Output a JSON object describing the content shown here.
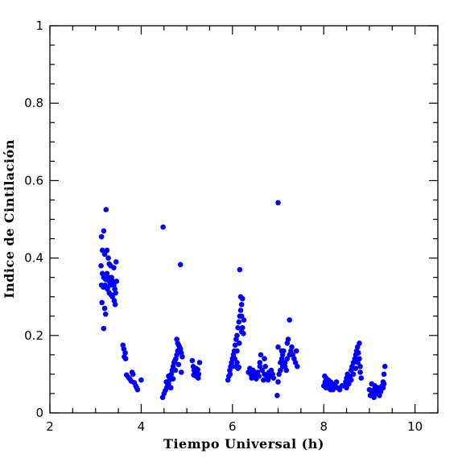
{
  "chart_data": {
    "type": "scatter",
    "title": "",
    "xlabel": "Tiempo Universal (h)",
    "ylabel": "Indice de Cintilación",
    "xlim": [
      2,
      10.5
    ],
    "ylim": [
      0,
      1
    ],
    "x_ticks": [
      2,
      4,
      6,
      8,
      10
    ],
    "x_tick_labels": [
      "2",
      "4",
      "6",
      "8",
      "10"
    ],
    "y_ticks": [
      0,
      0.2,
      0.4,
      0.6,
      0.8,
      1
    ],
    "y_tick_labels": [
      "0",
      "0.2",
      "0.4",
      "0.6",
      "0.8",
      "1"
    ],
    "grid": false,
    "marker_color": "#0000ff",
    "series": [
      {
        "points": [
          [
            3.23,
            0.525
          ],
          [
            3.13,
            0.455
          ],
          [
            3.18,
            0.47
          ],
          [
            3.15,
            0.42
          ],
          [
            3.2,
            0.41
          ],
          [
            3.25,
            0.42
          ],
          [
            3.28,
            0.4
          ],
          [
            3.3,
            0.385
          ],
          [
            3.33,
            0.38
          ],
          [
            3.45,
            0.39
          ],
          [
            3.4,
            0.375
          ],
          [
            3.12,
            0.38
          ],
          [
            3.15,
            0.36
          ],
          [
            3.18,
            0.35
          ],
          [
            3.22,
            0.345
          ],
          [
            3.25,
            0.36
          ],
          [
            3.28,
            0.35
          ],
          [
            3.3,
            0.34
          ],
          [
            3.32,
            0.33
          ],
          [
            3.35,
            0.35
          ],
          [
            3.38,
            0.34
          ],
          [
            3.4,
            0.33
          ],
          [
            3.42,
            0.32
          ],
          [
            3.44,
            0.31
          ],
          [
            3.46,
            0.34
          ],
          [
            3.13,
            0.33
          ],
          [
            3.17,
            0.325
          ],
          [
            3.21,
            0.33
          ],
          [
            3.26,
            0.32
          ],
          [
            3.3,
            0.31
          ],
          [
            3.34,
            0.305
          ],
          [
            3.37,
            0.3
          ],
          [
            3.41,
            0.29
          ],
          [
            3.43,
            0.28
          ],
          [
            3.14,
            0.285
          ],
          [
            3.2,
            0.27
          ],
          [
            3.22,
            0.255
          ],
          [
            3.18,
            0.218
          ],
          [
            3.6,
            0.175
          ],
          [
            3.62,
            0.165
          ],
          [
            3.65,
            0.155
          ],
          [
            3.63,
            0.145
          ],
          [
            3.66,
            0.14
          ],
          [
            3.68,
            0.098
          ],
          [
            3.72,
            0.092
          ],
          [
            3.75,
            0.088
          ],
          [
            3.78,
            0.082
          ],
          [
            3.8,
            0.105
          ],
          [
            3.82,
            0.1
          ],
          [
            3.85,
            0.078
          ],
          [
            3.88,
            0.07
          ],
          [
            3.9,
            0.065
          ],
          [
            3.92,
            0.06
          ],
          [
            4.0,
            0.085
          ],
          [
            4.48,
            0.48
          ],
          [
            4.47,
            0.04
          ],
          [
            4.5,
            0.05
          ],
          [
            4.53,
            0.058
          ],
          [
            4.56,
            0.065
          ],
          [
            4.58,
            0.07
          ],
          [
            4.6,
            0.075
          ],
          [
            4.62,
            0.085
          ],
          [
            4.64,
            0.09
          ],
          [
            4.66,
            0.1
          ],
          [
            4.68,
            0.11
          ],
          [
            4.7,
            0.12
          ],
          [
            4.72,
            0.13
          ],
          [
            4.74,
            0.135
          ],
          [
            4.76,
            0.14
          ],
          [
            4.78,
            0.15
          ],
          [
            4.8,
            0.16
          ],
          [
            4.82,
            0.175
          ],
          [
            4.84,
            0.17
          ],
          [
            4.86,
            0.165
          ],
          [
            4.88,
            0.155
          ],
          [
            4.9,
            0.145
          ],
          [
            4.78,
            0.19
          ],
          [
            4.8,
            0.18
          ],
          [
            4.86,
            0.383
          ],
          [
            4.55,
            0.08
          ],
          [
            4.6,
            0.095
          ],
          [
            4.65,
            0.065
          ],
          [
            4.7,
            0.088
          ],
          [
            4.75,
            0.11
          ],
          [
            4.82,
            0.125
          ],
          [
            4.88,
            0.105
          ],
          [
            5.12,
            0.135
          ],
          [
            5.14,
            0.12
          ],
          [
            5.16,
            0.11
          ],
          [
            5.18,
            0.1
          ],
          [
            5.2,
            0.095
          ],
          [
            5.22,
            0.105
          ],
          [
            5.24,
            0.112
          ],
          [
            5.26,
            0.1
          ],
          [
            5.28,
            0.13
          ],
          [
            5.15,
            0.098
          ],
          [
            5.2,
            0.115
          ],
          [
            5.25,
            0.09
          ],
          [
            5.9,
            0.085
          ],
          [
            5.92,
            0.095
          ],
          [
            5.94,
            0.11
          ],
          [
            5.96,
            0.12
          ],
          [
            5.98,
            0.13
          ],
          [
            6.0,
            0.14
          ],
          [
            6.02,
            0.15
          ],
          [
            6.04,
            0.16
          ],
          [
            6.06,
            0.175
          ],
          [
            6.08,
            0.19
          ],
          [
            6.1,
            0.2
          ],
          [
            6.12,
            0.22
          ],
          [
            6.14,
            0.235
          ],
          [
            6.16,
            0.25
          ],
          [
            6.18,
            0.265
          ],
          [
            6.2,
            0.28
          ],
          [
            6.22,
            0.295
          ],
          [
            6.16,
            0.37
          ],
          [
            6.18,
            0.3
          ],
          [
            6.2,
            0.25
          ],
          [
            6.22,
            0.22
          ],
          [
            6.24,
            0.205
          ],
          [
            6.08,
            0.12
          ],
          [
            6.1,
            0.13
          ],
          [
            6.12,
            0.115
          ],
          [
            6.14,
            0.118
          ],
          [
            5.95,
            0.1
          ],
          [
            6.0,
            0.12
          ],
          [
            6.05,
            0.14
          ],
          [
            6.1,
            0.16
          ],
          [
            6.15,
            0.18
          ],
          [
            6.2,
            0.21
          ],
          [
            6.25,
            0.24
          ],
          [
            6.35,
            0.105
          ],
          [
            6.4,
            0.1
          ],
          [
            6.45,
            0.11
          ],
          [
            6.5,
            0.095
          ],
          [
            6.55,
            0.105
          ],
          [
            6.6,
            0.12
          ],
          [
            6.62,
            0.15
          ],
          [
            6.65,
            0.11
          ],
          [
            6.7,
            0.1
          ],
          [
            6.75,
            0.095
          ],
          [
            6.8,
            0.105
          ],
          [
            6.85,
            0.11
          ],
          [
            6.9,
            0.09
          ],
          [
            6.38,
            0.115
          ],
          [
            6.42,
            0.09
          ],
          [
            6.48,
            0.1
          ],
          [
            6.52,
            0.088
          ],
          [
            6.58,
            0.095
          ],
          [
            6.68,
            0.085
          ],
          [
            6.72,
            0.12
          ],
          [
            6.78,
            0.085
          ],
          [
            6.82,
            0.095
          ],
          [
            6.88,
            0.1
          ],
          [
            6.6,
            0.13
          ],
          [
            6.7,
            0.14
          ],
          [
            7.0,
            0.543
          ],
          [
            6.98,
            0.045
          ],
          [
            7.0,
            0.08
          ],
          [
            7.02,
            0.1
          ],
          [
            7.05,
            0.13
          ],
          [
            7.08,
            0.14
          ],
          [
            7.1,
            0.15
          ],
          [
            7.12,
            0.16
          ],
          [
            7.15,
            0.12
          ],
          [
            7.18,
            0.11
          ],
          [
            7.2,
            0.18
          ],
          [
            7.22,
            0.19
          ],
          [
            7.25,
            0.24
          ],
          [
            7.05,
            0.11
          ],
          [
            7.1,
            0.12
          ],
          [
            7.15,
            0.13
          ],
          [
            7.2,
            0.14
          ],
          [
            7.25,
            0.15
          ],
          [
            7.28,
            0.16
          ],
          [
            7.3,
            0.17
          ],
          [
            7.32,
            0.15
          ],
          [
            7.35,
            0.14
          ],
          [
            7.38,
            0.13
          ],
          [
            7.4,
            0.16
          ],
          [
            7.42,
            0.12
          ],
          [
            7.0,
            0.17
          ],
          [
            7.08,
            0.16
          ],
          [
            8.0,
            0.07
          ],
          [
            8.03,
            0.08
          ],
          [
            8.05,
            0.09
          ],
          [
            8.08,
            0.075
          ],
          [
            8.1,
            0.065
          ],
          [
            8.12,
            0.07
          ],
          [
            8.15,
            0.08
          ],
          [
            8.18,
            0.075
          ],
          [
            8.2,
            0.06
          ],
          [
            8.22,
            0.065
          ],
          [
            8.25,
            0.07
          ],
          [
            8.28,
            0.08
          ],
          [
            8.3,
            0.065
          ],
          [
            8.35,
            0.06
          ],
          [
            8.4,
            0.07
          ],
          [
            8.02,
            0.095
          ],
          [
            8.05,
            0.065
          ],
          [
            8.1,
            0.085
          ],
          [
            8.15,
            0.06
          ],
          [
            8.2,
            0.075
          ],
          [
            8.45,
            0.07
          ],
          [
            8.48,
            0.08
          ],
          [
            8.5,
            0.09
          ],
          [
            8.52,
            0.1
          ],
          [
            8.55,
            0.085
          ],
          [
            8.58,
            0.095
          ],
          [
            8.6,
            0.11
          ],
          [
            8.62,
            0.12
          ],
          [
            8.65,
            0.13
          ],
          [
            8.68,
            0.14
          ],
          [
            8.7,
            0.15
          ],
          [
            8.72,
            0.16
          ],
          [
            8.74,
            0.17
          ],
          [
            8.76,
            0.155
          ],
          [
            8.78,
            0.14
          ],
          [
            8.8,
            0.12
          ],
          [
            8.5,
            0.065
          ],
          [
            8.55,
            0.075
          ],
          [
            8.6,
            0.085
          ],
          [
            8.65,
            0.1
          ],
          [
            8.7,
            0.115
          ],
          [
            8.75,
            0.13
          ],
          [
            8.8,
            0.105
          ],
          [
            8.82,
            0.09
          ],
          [
            8.78,
            0.18
          ],
          [
            9.0,
            0.06
          ],
          [
            9.02,
            0.045
          ],
          [
            9.05,
            0.05
          ],
          [
            9.08,
            0.055
          ],
          [
            9.1,
            0.06
          ],
          [
            9.12,
            0.07
          ],
          [
            9.15,
            0.065
          ],
          [
            9.18,
            0.055
          ],
          [
            9.2,
            0.05
          ],
          [
            9.22,
            0.045
          ],
          [
            9.25,
            0.06
          ],
          [
            9.28,
            0.07
          ],
          [
            9.3,
            0.08
          ],
          [
            9.32,
            0.1
          ],
          [
            9.34,
            0.12
          ],
          [
            9.05,
            0.075
          ],
          [
            9.1,
            0.04
          ],
          [
            9.15,
            0.05
          ],
          [
            9.2,
            0.065
          ],
          [
            9.25,
            0.055
          ],
          [
            9.3,
            0.065
          ],
          [
            9.32,
            0.075
          ]
        ]
      }
    ]
  }
}
